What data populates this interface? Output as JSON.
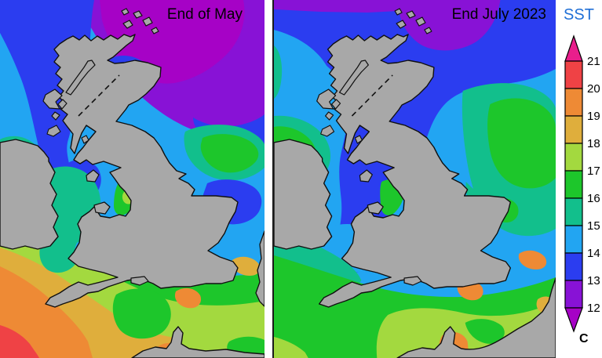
{
  "panels": [
    {
      "title": "End of May"
    },
    {
      "title": "End July 2023"
    }
  ],
  "colorbar": {
    "title": "SST",
    "unit": "C",
    "ticks": [
      "21",
      "20",
      "19",
      "18",
      "17",
      "16",
      "15",
      "14",
      "13",
      "12"
    ],
    "segments": [
      {
        "range": "20-21",
        "color": "#EF4245"
      },
      {
        "range": "19-20",
        "color": "#EE8A35"
      },
      {
        "range": "18-19",
        "color": "#DFAE3C"
      },
      {
        "range": "17-18",
        "color": "#A3D93F"
      },
      {
        "range": "16-17",
        "color": "#1DC62B"
      },
      {
        "range": "15-16",
        "color": "#12BF8C"
      },
      {
        "range": "14-15",
        "color": "#22A5F2"
      },
      {
        "range": "13-14",
        "color": "#2B3DF0"
      },
      {
        "range": "12-13",
        "color": "#8812D6"
      }
    ],
    "arrow_above": {
      "label": "above 21",
      "color": "#E91E8C"
    },
    "arrow_below": {
      "label": "below 12",
      "color": "#A602C6"
    }
  },
  "palette": {
    "t21": "#E91E8C",
    "t20": "#EF4245",
    "t19": "#EE8A35",
    "t18": "#DFAE3C",
    "t17": "#A3D93F",
    "t16": "#1DC62B",
    "t15": "#12BF8C",
    "t14": "#22A5F2",
    "t13": "#2B3DF0",
    "t12": "#8812D6",
    "t11": "#A602C6"
  },
  "land": {
    "fill": "#A8A8A8",
    "stroke": "#101010"
  }
}
